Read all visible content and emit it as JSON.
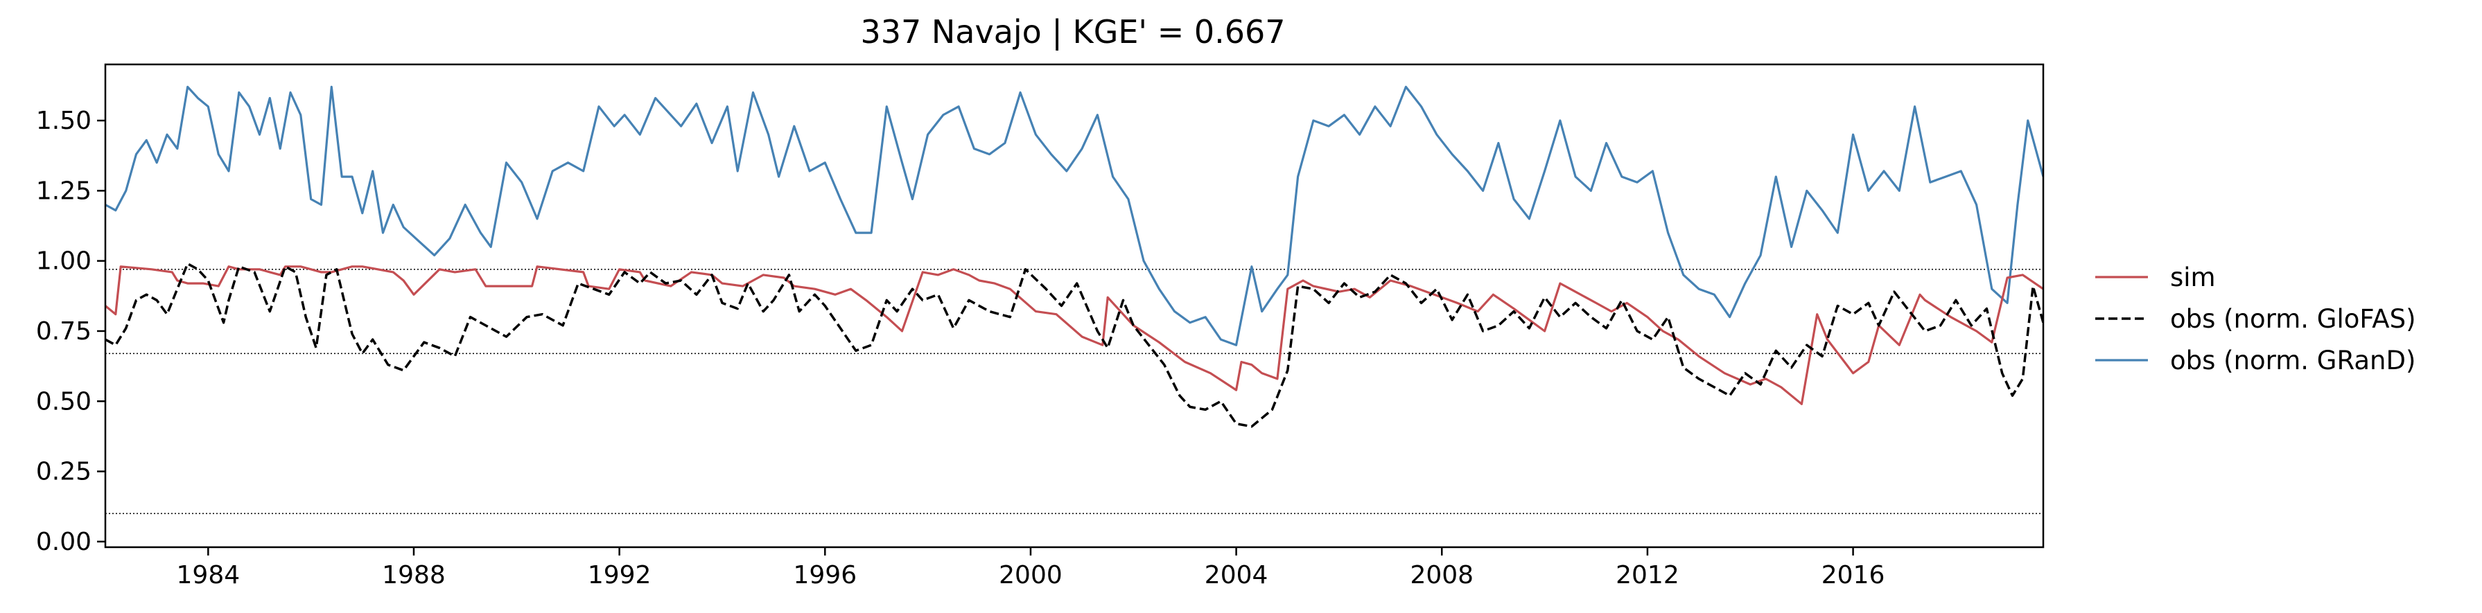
{
  "chart_data": {
    "type": "line",
    "title": "337  Navajo | KGE' = 0.667",
    "xlabel": "",
    "ylabel": "",
    "xlim": [
      1982.0,
      2019.7
    ],
    "ylim": [
      -0.02,
      1.7
    ],
    "xticks": [
      1984,
      1988,
      1992,
      1996,
      2000,
      2004,
      2008,
      2012,
      2016
    ],
    "yticks": [
      0.0,
      0.25,
      0.5,
      0.75,
      1.0,
      1.25,
      1.5
    ],
    "ytick_labels": [
      "0.00",
      "0.25",
      "0.50",
      "0.75",
      "1.00",
      "1.25",
      "1.50"
    ],
    "grid": false,
    "hlines": [
      0.97,
      0.67,
      0.1
    ],
    "legend_position": "right",
    "series": [
      {
        "name": "sim",
        "color": "#c44e52",
        "style": "solid",
        "x": [
          1982.0,
          1982.2,
          1982.3,
          1982.9,
          1983.3,
          1983.4,
          1983.6,
          1983.9,
          1984.2,
          1984.4,
          1984.6,
          1985.0,
          1985.2,
          1985.4,
          1985.5,
          1985.8,
          1986.0,
          1986.2,
          1986.4,
          1986.8,
          1987.0,
          1987.3,
          1987.6,
          1987.8,
          1988.0,
          1988.5,
          1988.8,
          1989.2,
          1989.4,
          1990.3,
          1990.4,
          1991.3,
          1991.4,
          1991.8,
          1992.0,
          1992.4,
          1992.5,
          1993.0,
          1993.4,
          1993.8,
          1994.0,
          1994.4,
          1994.8,
          1995.2,
          1995.4,
          1995.8,
          1996.2,
          1996.5,
          1996.8,
          1997.2,
          1997.5,
          1997.9,
          1998.2,
          1998.5,
          1998.8,
          1999.0,
          1999.3,
          1999.6,
          2000.1,
          2000.5,
          2001.0,
          2001.4,
          2001.5,
          2002.0,
          2002.5,
          2003.0,
          2003.5,
          2004.0,
          2004.1,
          2004.3,
          2004.5,
          2004.8,
          2005.0,
          2005.3,
          2005.5,
          2006.0,
          2006.3,
          2006.6,
          2007.0,
          2007.4,
          2007.7,
          2008.0,
          2008.3,
          2008.7,
          2009.0,
          2009.4,
          2009.7,
          2010.0,
          2010.3,
          2010.5,
          2011.0,
          2011.3,
          2011.6,
          2012.0,
          2012.3,
          2012.6,
          2013.0,
          2013.5,
          2014.0,
          2014.3,
          2014.6,
          2015.0,
          2015.3,
          2015.5,
          2016.0,
          2016.3,
          2016.5,
          2016.9,
          2017.3,
          2017.4,
          2017.9,
          2018.4,
          2018.7,
          2019.0,
          2019.3,
          2019.7
        ],
        "values": [
          0.84,
          0.81,
          0.98,
          0.97,
          0.96,
          0.93,
          0.92,
          0.92,
          0.91,
          0.98,
          0.97,
          0.97,
          0.96,
          0.95,
          0.98,
          0.98,
          0.97,
          0.96,
          0.96,
          0.98,
          0.98,
          0.97,
          0.96,
          0.93,
          0.88,
          0.97,
          0.96,
          0.97,
          0.91,
          0.91,
          0.98,
          0.96,
          0.91,
          0.9,
          0.97,
          0.96,
          0.93,
          0.91,
          0.96,
          0.95,
          0.92,
          0.91,
          0.95,
          0.94,
          0.91,
          0.9,
          0.88,
          0.9,
          0.86,
          0.8,
          0.75,
          0.96,
          0.95,
          0.97,
          0.95,
          0.93,
          0.92,
          0.9,
          0.82,
          0.81,
          0.73,
          0.7,
          0.87,
          0.77,
          0.71,
          0.64,
          0.6,
          0.54,
          0.64,
          0.63,
          0.6,
          0.58,
          0.9,
          0.93,
          0.91,
          0.89,
          0.9,
          0.87,
          0.93,
          0.91,
          0.89,
          0.87,
          0.85,
          0.82,
          0.88,
          0.83,
          0.79,
          0.75,
          0.92,
          0.9,
          0.85,
          0.82,
          0.85,
          0.8,
          0.75,
          0.72,
          0.66,
          0.6,
          0.56,
          0.58,
          0.55,
          0.49,
          0.81,
          0.72,
          0.6,
          0.64,
          0.77,
          0.7,
          0.88,
          0.86,
          0.8,
          0.75,
          0.71,
          0.94,
          0.95,
          0.9
        ]
      },
      {
        "name": "obs (norm. GloFAS)",
        "color": "#000000",
        "style": "dashed",
        "x": [
          1982.0,
          1982.2,
          1982.4,
          1982.6,
          1982.8,
          1983.0,
          1983.2,
          1983.4,
          1983.6,
          1983.8,
          1984.0,
          1984.3,
          1984.4,
          1984.6,
          1984.9,
          1985.2,
          1985.5,
          1985.7,
          1985.9,
          1986.1,
          1986.3,
          1986.5,
          1986.8,
          1987.0,
          1987.2,
          1987.5,
          1987.8,
          1988.2,
          1988.5,
          1988.8,
          1989.1,
          1989.5,
          1989.8,
          1990.2,
          1990.5,
          1990.9,
          1991.2,
          1991.5,
          1991.8,
          1992.1,
          1992.4,
          1992.6,
          1992.9,
          1993.2,
          1993.5,
          1993.8,
          1994.0,
          1994.3,
          1994.5,
          1994.8,
          1995.0,
          1995.3,
          1995.5,
          1995.8,
          1996.0,
          1996.3,
          1996.6,
          1996.9,
          1997.2,
          1997.4,
          1997.7,
          1997.9,
          1998.2,
          1998.5,
          1998.8,
          1999.2,
          1999.6,
          1999.9,
          2000.3,
          2000.6,
          2000.9,
          2001.3,
          2001.5,
          2001.8,
          2002.0,
          2002.3,
          2002.6,
          2002.9,
          2003.1,
          2003.4,
          2003.7,
          2004.0,
          2004.3,
          2004.7,
          2005.0,
          2005.2,
          2005.5,
          2005.8,
          2006.1,
          2006.4,
          2006.7,
          2007.0,
          2007.3,
          2007.6,
          2007.9,
          2008.2,
          2008.5,
          2008.8,
          2009.1,
          2009.4,
          2009.7,
          2010.0,
          2010.3,
          2010.6,
          2010.9,
          2011.2,
          2011.5,
          2011.8,
          2012.1,
          2012.4,
          2012.7,
          2013.0,
          2013.3,
          2013.6,
          2013.9,
          2014.2,
          2014.5,
          2014.8,
          2015.1,
          2015.4,
          2015.7,
          2016.0,
          2016.3,
          2016.5,
          2016.8,
          2017.1,
          2017.4,
          2017.7,
          2018.0,
          2018.3,
          2018.6,
          2018.9,
          2019.1,
          2019.3,
          2019.5,
          2019.7
        ],
        "values": [
          0.72,
          0.7,
          0.76,
          0.86,
          0.88,
          0.86,
          0.81,
          0.9,
          0.99,
          0.97,
          0.93,
          0.78,
          0.86,
          0.98,
          0.96,
          0.82,
          0.98,
          0.96,
          0.8,
          0.69,
          0.95,
          0.97,
          0.74,
          0.67,
          0.72,
          0.63,
          0.61,
          0.71,
          0.69,
          0.66,
          0.8,
          0.76,
          0.73,
          0.8,
          0.81,
          0.77,
          0.92,
          0.9,
          0.88,
          0.96,
          0.92,
          0.96,
          0.92,
          0.93,
          0.88,
          0.95,
          0.85,
          0.83,
          0.92,
          0.82,
          0.86,
          0.95,
          0.82,
          0.88,
          0.84,
          0.76,
          0.68,
          0.7,
          0.86,
          0.82,
          0.9,
          0.86,
          0.88,
          0.76,
          0.86,
          0.82,
          0.8,
          0.97,
          0.9,
          0.84,
          0.92,
          0.75,
          0.69,
          0.86,
          0.77,
          0.7,
          0.63,
          0.52,
          0.48,
          0.47,
          0.5,
          0.42,
          0.41,
          0.47,
          0.61,
          0.91,
          0.9,
          0.85,
          0.92,
          0.87,
          0.89,
          0.95,
          0.92,
          0.85,
          0.9,
          0.79,
          0.88,
          0.75,
          0.77,
          0.82,
          0.76,
          0.87,
          0.8,
          0.85,
          0.8,
          0.76,
          0.86,
          0.75,
          0.72,
          0.8,
          0.62,
          0.58,
          0.55,
          0.52,
          0.6,
          0.56,
          0.68,
          0.62,
          0.7,
          0.66,
          0.84,
          0.81,
          0.85,
          0.77,
          0.89,
          0.82,
          0.75,
          0.77,
          0.86,
          0.77,
          0.83,
          0.6,
          0.52,
          0.58,
          0.91,
          0.78
        ]
      },
      {
        "name": "obs (norm. GRanD)",
        "color": "#4682b4",
        "style": "solid",
        "x": [
          1982.0,
          1982.2,
          1982.4,
          1982.6,
          1982.8,
          1983.0,
          1983.2,
          1983.4,
          1983.6,
          1983.8,
          1984.0,
          1984.2,
          1984.4,
          1984.6,
          1984.8,
          1985.0,
          1985.2,
          1985.4,
          1985.6,
          1985.8,
          1986.0,
          1986.2,
          1986.4,
          1986.6,
          1986.8,
          1987.0,
          1987.2,
          1987.4,
          1987.6,
          1987.8,
          1988.1,
          1988.4,
          1988.7,
          1989.0,
          1989.3,
          1989.5,
          1989.8,
          1990.1,
          1990.4,
          1990.7,
          1991.0,
          1991.3,
          1991.6,
          1991.9,
          1992.1,
          1992.4,
          1992.7,
          1993.0,
          1993.2,
          1993.5,
          1993.8,
          1994.1,
          1994.3,
          1994.6,
          1994.9,
          1995.1,
          1995.4,
          1995.7,
          1996.0,
          1996.3,
          1996.6,
          1996.9,
          1997.2,
          1997.5,
          1997.7,
          1998.0,
          1998.3,
          1998.6,
          1998.9,
          1999.2,
          1999.5,
          1999.8,
          2000.1,
          2000.4,
          2000.7,
          2001.0,
          2001.3,
          2001.6,
          2001.9,
          2002.2,
          2002.5,
          2002.8,
          2003.1,
          2003.4,
          2003.7,
          2004.0,
          2004.3,
          2004.5,
          2004.8,
          2005.0,
          2005.2,
          2005.5,
          2005.8,
          2006.1,
          2006.4,
          2006.7,
          2007.0,
          2007.3,
          2007.6,
          2007.9,
          2008.2,
          2008.5,
          2008.8,
          2009.1,
          2009.4,
          2009.7,
          2010.0,
          2010.3,
          2010.6,
          2010.9,
          2011.2,
          2011.5,
          2011.8,
          2012.1,
          2012.4,
          2012.7,
          2013.0,
          2013.3,
          2013.6,
          2013.9,
          2014.2,
          2014.5,
          2014.8,
          2015.1,
          2015.4,
          2015.7,
          2016.0,
          2016.3,
          2016.6,
          2016.9,
          2017.2,
          2017.5,
          2017.8,
          2018.1,
          2018.4,
          2018.7,
          2019.0,
          2019.2,
          2019.4,
          2019.7
        ],
        "values": [
          1.2,
          1.18,
          1.25,
          1.38,
          1.43,
          1.35,
          1.45,
          1.4,
          1.62,
          1.58,
          1.55,
          1.38,
          1.32,
          1.6,
          1.55,
          1.45,
          1.58,
          1.4,
          1.6,
          1.52,
          1.22,
          1.2,
          1.62,
          1.3,
          1.3,
          1.17,
          1.32,
          1.1,
          1.2,
          1.12,
          1.07,
          1.02,
          1.08,
          1.2,
          1.1,
          1.05,
          1.35,
          1.28,
          1.15,
          1.32,
          1.35,
          1.32,
          1.55,
          1.48,
          1.52,
          1.45,
          1.58,
          1.52,
          1.48,
          1.56,
          1.42,
          1.55,
          1.32,
          1.6,
          1.45,
          1.3,
          1.48,
          1.32,
          1.35,
          1.22,
          1.1,
          1.1,
          1.55,
          1.35,
          1.22,
          1.45,
          1.52,
          1.55,
          1.4,
          1.38,
          1.42,
          1.6,
          1.45,
          1.38,
          1.32,
          1.4,
          1.52,
          1.3,
          1.22,
          1.0,
          0.9,
          0.82,
          0.78,
          0.8,
          0.72,
          0.7,
          0.98,
          0.82,
          0.9,
          0.95,
          1.3,
          1.5,
          1.48,
          1.52,
          1.45,
          1.55,
          1.48,
          1.62,
          1.55,
          1.45,
          1.38,
          1.32,
          1.25,
          1.42,
          1.22,
          1.15,
          1.32,
          1.5,
          1.3,
          1.25,
          1.42,
          1.3,
          1.28,
          1.32,
          1.1,
          0.95,
          0.9,
          0.88,
          0.8,
          0.92,
          1.02,
          1.3,
          1.05,
          1.25,
          1.18,
          1.1,
          1.45,
          1.25,
          1.32,
          1.25,
          1.55,
          1.28,
          1.3,
          1.32,
          1.2,
          0.9,
          0.85,
          1.2,
          1.5,
          1.3
        ]
      }
    ]
  }
}
